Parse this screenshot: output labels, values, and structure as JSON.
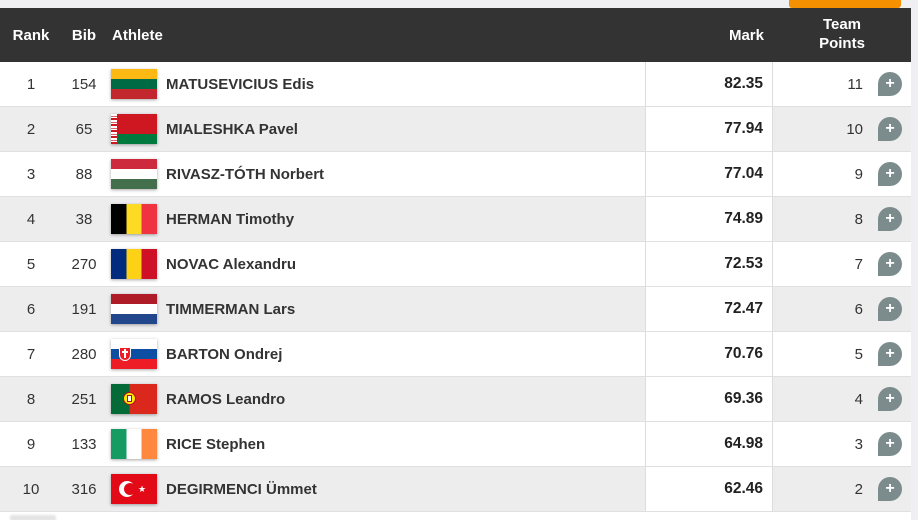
{
  "toolbar": {
    "action_button": {
      "label": "",
      "note": "button cut off at top edge of screenshot"
    }
  },
  "results_table": {
    "columns": {
      "rank": "Rank",
      "bib": "Bib",
      "athlete": "Athlete",
      "mark": "Mark",
      "team_points": "Team Points"
    },
    "rows": [
      {
        "rank": "1",
        "bib": "154",
        "athlete": "MATUSEVICIUS Edis",
        "country": "ltu",
        "mark": "82.35",
        "team_points": "11"
      },
      {
        "rank": "2",
        "bib": "65",
        "athlete": "MIALESHKA Pavel",
        "country": "blr",
        "mark": "77.94",
        "team_points": "10"
      },
      {
        "rank": "3",
        "bib": "88",
        "athlete": "RIVASZ-TÓTH Norbert",
        "country": "hun",
        "mark": "77.04",
        "team_points": "9"
      },
      {
        "rank": "4",
        "bib": "38",
        "athlete": "HERMAN Timothy",
        "country": "bel",
        "mark": "74.89",
        "team_points": "8"
      },
      {
        "rank": "5",
        "bib": "270",
        "athlete": "NOVAC Alexandru",
        "country": "rou",
        "mark": "72.53",
        "team_points": "7"
      },
      {
        "rank": "6",
        "bib": "191",
        "athlete": "TIMMERMAN Lars",
        "country": "ned",
        "mark": "72.47",
        "team_points": "6"
      },
      {
        "rank": "7",
        "bib": "280",
        "athlete": "BARTON Ondrej",
        "country": "svk",
        "mark": "70.76",
        "team_points": "5"
      },
      {
        "rank": "8",
        "bib": "251",
        "athlete": "RAMOS Leandro",
        "country": "por",
        "mark": "69.36",
        "team_points": "4"
      },
      {
        "rank": "9",
        "bib": "133",
        "athlete": "RICE Stephen",
        "country": "irl",
        "mark": "64.98",
        "team_points": "3"
      },
      {
        "rank": "10",
        "bib": "316",
        "athlete": "DEGIRMENCI Ümmet",
        "country": "tur",
        "mark": "62.46",
        "team_points": "2"
      }
    ],
    "partial_next_row_visible": true
  },
  "icons": {
    "add": "+"
  },
  "colors": {
    "accent_orange": "#F59100",
    "header_bg": "#333333",
    "stripe": "#EDEDEE",
    "add_button": "#7C8C8C"
  }
}
